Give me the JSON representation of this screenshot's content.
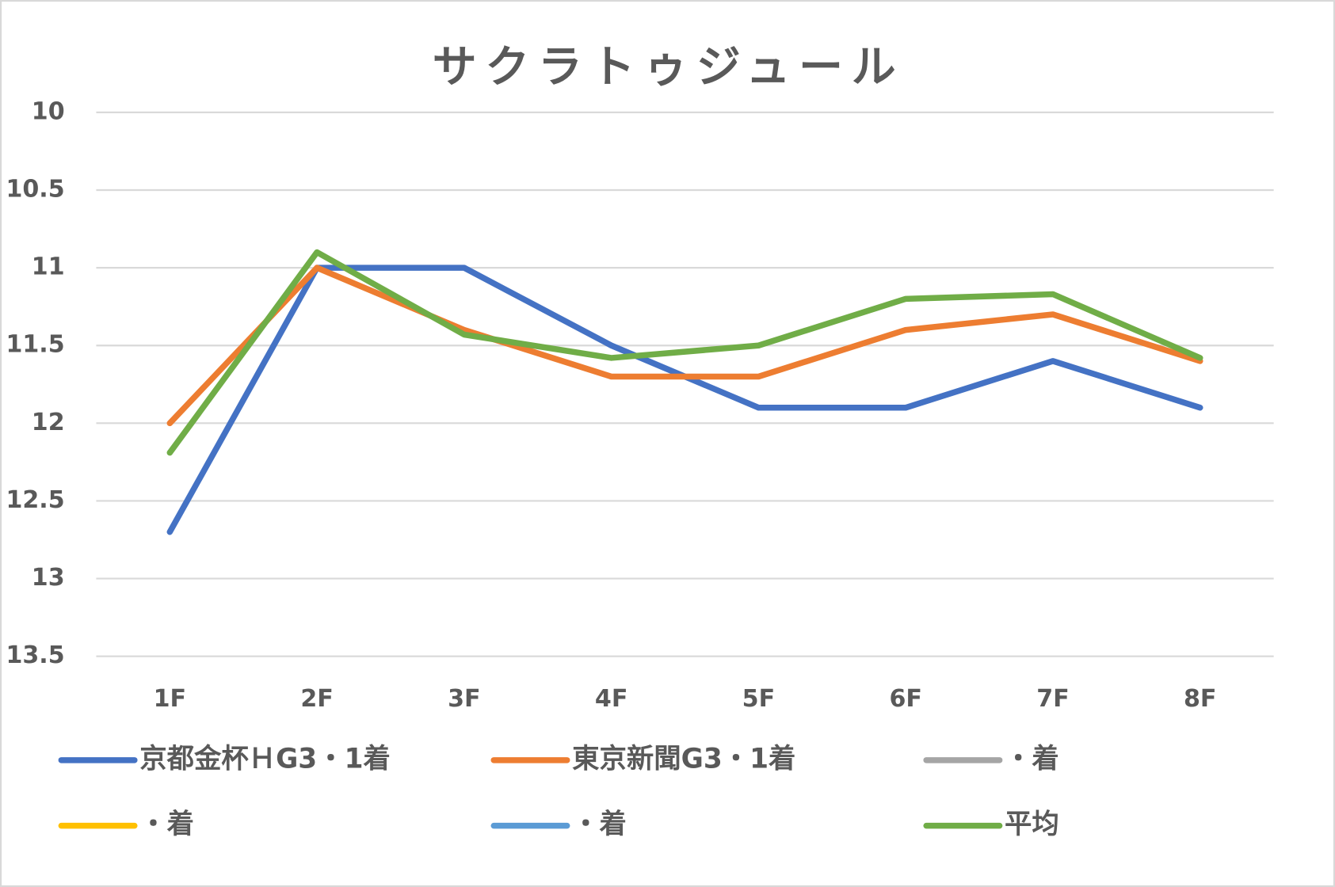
{
  "chart_data": {
    "type": "line",
    "title": "サクラトゥジュール",
    "categories": [
      "1F",
      "2F",
      "3F",
      "4F",
      "5F",
      "6F",
      "7F",
      "8F"
    ],
    "series": [
      {
        "name": "京都金杯ＨG3・1着",
        "color": "#4472c4",
        "values": [
          12.7,
          11,
          11,
          11.5,
          11.9,
          11.9,
          11.6,
          11.9
        ]
      },
      {
        "name": "東京新聞G3・1着",
        "color": "#ed7d31",
        "values": [
          12,
          11,
          11.4,
          11.7,
          11.7,
          11.4,
          11.3,
          11.6
        ]
      },
      {
        "name": "・着",
        "color": "#a5a5a5",
        "values": [
          null,
          null,
          null,
          null,
          null,
          null,
          null,
          null
        ]
      },
      {
        "name": "・着",
        "color": "#ffc000",
        "values": [
          null,
          null,
          null,
          null,
          null,
          null,
          null,
          null
        ]
      },
      {
        "name": "・着",
        "color": "#5b9bd5",
        "values": [
          null,
          null,
          null,
          null,
          null,
          null,
          null,
          null
        ]
      },
      {
        "name": "平均",
        "color": "#70ad47",
        "values": [
          12.19,
          10.9,
          11.43,
          11.58,
          11.5,
          11.2,
          11.17,
          11.58
        ]
      }
    ],
    "ylim": [
      10,
      13.5
    ],
    "y_inverted": true,
    "yticks": [
      10,
      10.5,
      11,
      11.5,
      12,
      12.5,
      13,
      13.5
    ],
    "grid": true,
    "legend": "bottom"
  }
}
